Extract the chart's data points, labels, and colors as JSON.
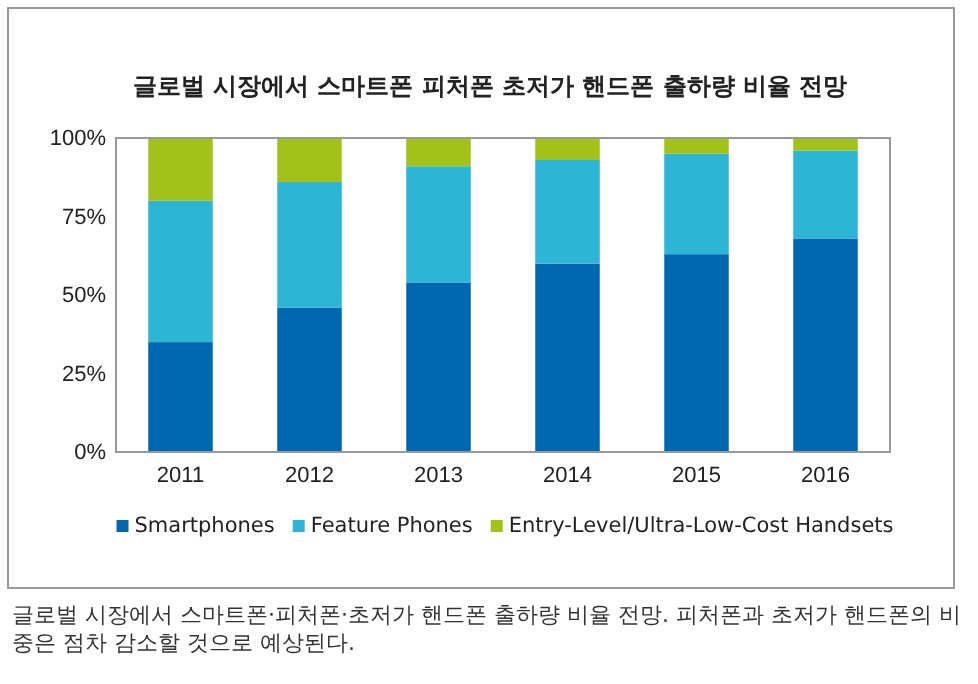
{
  "chart_data": {
    "type": "bar",
    "title": "글로벌 시장에서 스마트폰 피처폰 초저가 핸드폰 출하량 비율 전망",
    "categories": [
      "2011",
      "2012",
      "2013",
      "2014",
      "2015",
      "2016"
    ],
    "stacked": true,
    "series": [
      {
        "name": "Smartphones",
        "color": "#0068b0",
        "values": [
          35,
          46,
          54,
          60,
          63,
          68
        ]
      },
      {
        "name": "Feature Phones",
        "color": "#2db5d6",
        "values": [
          45,
          40,
          37,
          33,
          32,
          28
        ]
      },
      {
        "name": "Entry-Level/Ultra-Low-Cost Handsets",
        "color": "#a2c21a",
        "values": [
          20,
          14,
          9,
          7,
          5,
          4
        ]
      }
    ],
    "ylim": [
      0,
      100
    ],
    "yticks": [
      {
        "value": 0,
        "label": "0%"
      },
      {
        "value": 25,
        "label": "25%"
      },
      {
        "value": 50,
        "label": "50%"
      },
      {
        "value": 75,
        "label": "75%"
      },
      {
        "value": 100,
        "label": "100%"
      }
    ],
    "legend": "bottom",
    "annotations": [
      "글로벌 시장에서 스마트폰·피처폰·초저가 핸드폰 출하량 비율 전망. 피처폰과 초저가 핸드폰의 비중은 점차 감소할 것으로 예상된다."
    ]
  }
}
